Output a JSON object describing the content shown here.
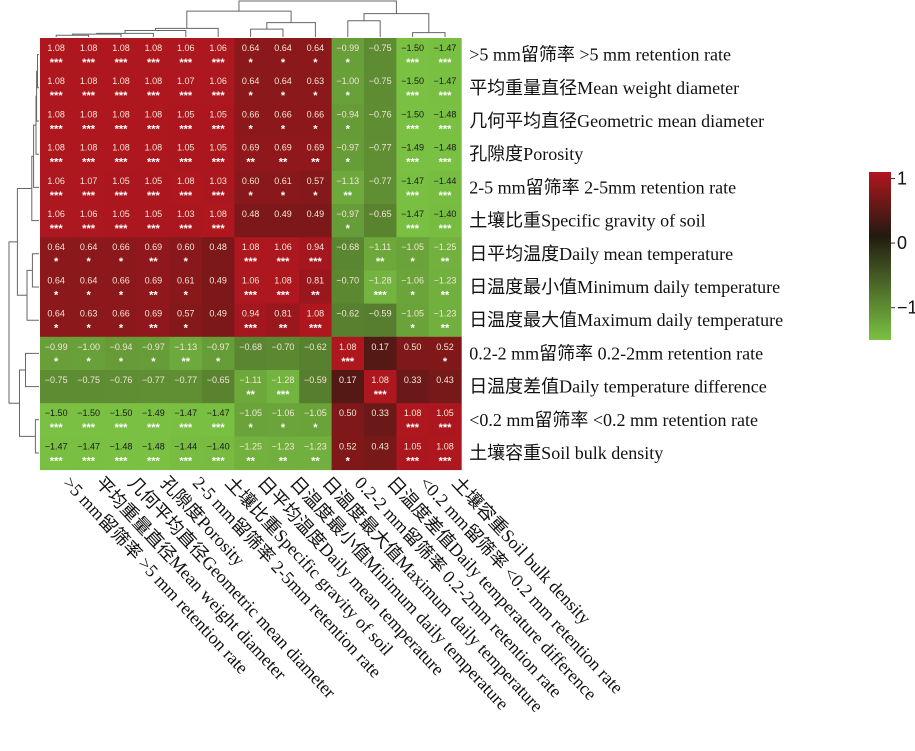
{
  "chart_data": {
    "type": "heatmap",
    "title": "",
    "labels": [
      ">5 mm留筛率 >5 mm retention rate",
      "平均重量直径Mean weight diameter",
      "几何平均直径Geometric mean diameter",
      "孔隙度Porosity",
      "2-5 mm留筛率 2-5mm retention rate",
      "土壤比重Specific gravity of soil",
      "日平均温度Daily mean temperature",
      "日温度最小值Minimum daily temperature",
      "日温度最大值Maximum daily temperature",
      "0.2-2 mm留筛率 0.2-2mm retention rate",
      "日温度差值Daily temperature difference",
      "<0.2 mm留筛率 <0.2 mm retention rate",
      "土壤容重Soil bulk density"
    ],
    "values": [
      [
        1.08,
        1.08,
        1.08,
        1.08,
        1.06,
        1.06,
        0.64,
        0.64,
        0.64,
        -0.99,
        -0.75,
        -1.5,
        -1.47
      ],
      [
        1.08,
        1.08,
        1.08,
        1.08,
        1.07,
        1.06,
        0.64,
        0.64,
        0.63,
        -1.0,
        -0.75,
        -1.5,
        -1.47
      ],
      [
        1.08,
        1.08,
        1.08,
        1.08,
        1.05,
        1.05,
        0.66,
        0.66,
        0.66,
        -0.94,
        -0.76,
        -1.5,
        -1.48
      ],
      [
        1.08,
        1.08,
        1.08,
        1.08,
        1.05,
        1.05,
        0.69,
        0.69,
        0.69,
        -0.97,
        -0.77,
        -1.49,
        -1.48
      ],
      [
        1.06,
        1.07,
        1.05,
        1.05,
        1.08,
        1.03,
        0.6,
        0.61,
        0.57,
        -1.13,
        -0.77,
        -1.47,
        -1.44
      ],
      [
        1.06,
        1.06,
        1.05,
        1.05,
        1.03,
        1.08,
        0.48,
        0.49,
        0.49,
        -0.97,
        -0.65,
        -1.47,
        -1.4
      ],
      [
        0.64,
        0.64,
        0.66,
        0.69,
        0.6,
        0.48,
        1.08,
        1.06,
        0.94,
        -0.68,
        -1.11,
        -1.05,
        -1.25
      ],
      [
        0.64,
        0.64,
        0.66,
        0.69,
        0.61,
        0.49,
        1.06,
        1.08,
        0.81,
        -0.7,
        -1.28,
        -1.06,
        -1.23
      ],
      [
        0.64,
        0.63,
        0.66,
        0.69,
        0.57,
        0.49,
        0.94,
        0.81,
        1.08,
        -0.62,
        -0.59,
        -1.05,
        -1.23
      ],
      [
        -0.99,
        -1.0,
        -0.94,
        -0.97,
        -1.13,
        -0.97,
        -0.68,
        -0.7,
        -0.62,
        1.08,
        0.17,
        0.5,
        0.52
      ],
      [
        -0.75,
        -0.75,
        -0.76,
        -0.77,
        -0.77,
        -0.65,
        -1.11,
        -1.28,
        -0.59,
        0.17,
        1.08,
        0.33,
        0.43
      ],
      [
        -1.5,
        -1.5,
        -1.5,
        -1.49,
        -1.47,
        -1.47,
        -1.05,
        -1.06,
        -1.05,
        0.5,
        0.33,
        1.08,
        1.05
      ],
      [
        -1.47,
        -1.47,
        -1.48,
        -1.48,
        -1.44,
        -1.4,
        -1.25,
        -1.23,
        -1.23,
        0.52,
        0.43,
        1.05,
        1.08
      ]
    ],
    "significance": [
      [
        "***",
        "***",
        "***",
        "***",
        "***",
        "***",
        "*",
        "*",
        "*",
        "*",
        "",
        "***",
        "***"
      ],
      [
        "***",
        "***",
        "***",
        "***",
        "***",
        "***",
        "*",
        "*",
        "*",
        "*",
        "",
        "***",
        "***"
      ],
      [
        "***",
        "***",
        "***",
        "***",
        "***",
        "***",
        "*",
        "*",
        "*",
        "*",
        "",
        "***",
        "***"
      ],
      [
        "***",
        "***",
        "***",
        "***",
        "***",
        "***",
        "**",
        "**",
        "**",
        "*",
        "",
        "***",
        "***"
      ],
      [
        "***",
        "***",
        "***",
        "***",
        "***",
        "***",
        "*",
        "*",
        "*",
        "**",
        "",
        "***",
        "***"
      ],
      [
        "***",
        "***",
        "***",
        "***",
        "***",
        "***",
        "",
        "",
        "",
        "*",
        "",
        "***",
        "***"
      ],
      [
        "*",
        "*",
        "*",
        "**",
        "*",
        "",
        "***",
        "***",
        "***",
        "",
        "**",
        "*",
        "**"
      ],
      [
        "*",
        "*",
        "*",
        "**",
        "*",
        "",
        "***",
        "***",
        "**",
        "",
        "***",
        "*",
        "**"
      ],
      [
        "*",
        "*",
        "*",
        "**",
        "*",
        "",
        "***",
        "**",
        "***",
        "",
        "",
        "*",
        "**"
      ],
      [
        "*",
        "*",
        "*",
        "*",
        "**",
        "*",
        "",
        "",
        "",
        "***",
        "",
        "",
        "*"
      ],
      [
        "",
        "",
        "",
        "",
        "",
        "",
        "**",
        "***",
        "",
        "",
        "***",
        "",
        ""
      ],
      [
        "***",
        "***",
        "***",
        "***",
        "***",
        "***",
        "*",
        "*",
        "*",
        "",
        "",
        "***",
        "***"
      ],
      [
        "***",
        "***",
        "***",
        "***",
        "***",
        "***",
        "**",
        "**",
        "**",
        "*",
        "",
        "***",
        "***"
      ]
    ],
    "colorbar": {
      "ticks": [
        1,
        0,
        -1
      ],
      "tick_labels": [
        "1",
        "0",
        "−1"
      ],
      "range": [
        -1.5,
        1.1
      ]
    },
    "colors": {
      "high": "#b0171f",
      "mid": "#221a10",
      "low": "#7ac143"
    },
    "dendrogram": {
      "order": [
        0,
        1,
        2,
        3,
        4,
        5,
        6,
        7,
        8,
        9,
        10,
        11,
        12
      ]
    }
  }
}
